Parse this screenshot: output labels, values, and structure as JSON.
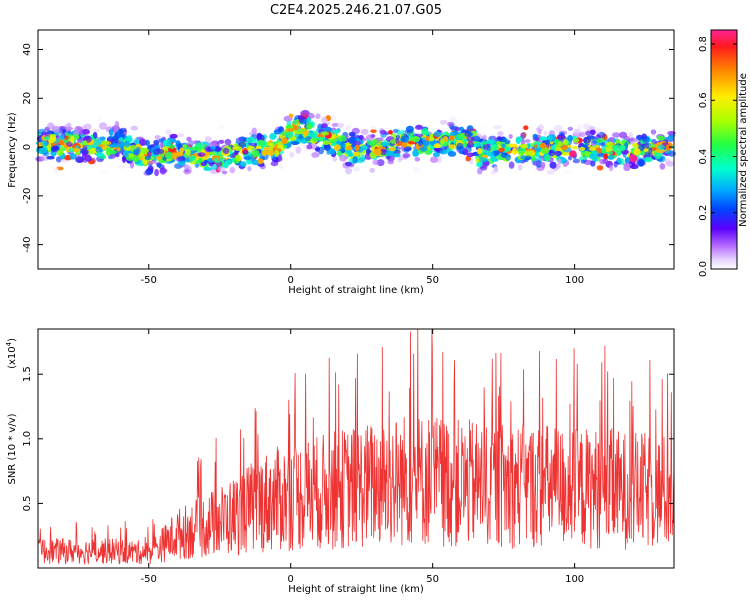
{
  "title": "C2E4.2025.246.21.07.G05",
  "chart_data": [
    {
      "type": "heatmap",
      "name": "spectrogram",
      "xlabel": "Height of straight line (km)",
      "ylabel": "Frequency (Hz)",
      "xlim": [
        -89,
        135
      ],
      "ylim": [
        -50,
        48
      ],
      "xticks": [
        -50,
        0,
        50,
        100
      ],
      "yticks": [
        -40,
        -20,
        0,
        20,
        40
      ],
      "ridge": {
        "x": [
          -89,
          -80,
          -70,
          -60,
          -50,
          -40,
          -30,
          -20,
          -10,
          -5,
          0,
          5,
          10,
          15,
          20,
          30,
          40,
          50,
          60,
          64,
          66,
          70,
          80,
          90,
          100,
          110,
          120,
          130,
          135
        ],
        "y": [
          2,
          1,
          0,
          1,
          -4,
          -2,
          -4,
          -3,
          -1,
          0,
          6,
          7,
          4,
          3,
          -1,
          -1,
          2,
          2,
          3,
          4,
          -3,
          -2,
          -1,
          -1,
          0,
          -1,
          -2,
          0,
          0
        ]
      },
      "colorbar": {
        "label": "Normalized spectral amplitude",
        "ticks": [
          0.0,
          0.2,
          0.4,
          0.6,
          0.8
        ],
        "range": [
          0,
          0.85
        ]
      }
    },
    {
      "type": "line",
      "name": "snr",
      "xlabel": "Height of straight line (km)",
      "ylabel": "SNR (10 * v/v)",
      "multiplier": "(x10",
      "multiplier_exp": "4",
      "xlim": [
        -89,
        135
      ],
      "ylim": [
        0,
        1.85
      ],
      "xticks": [
        -50,
        0,
        50,
        100
      ],
      "yticks": [
        0.5,
        1.0,
        1.5
      ],
      "ytick_labels": [
        "0.5",
        "1.0",
        "1.5"
      ],
      "color": "#ee3333",
      "envelope": {
        "x": [
          -89,
          -80,
          -60,
          -50,
          -45,
          -40,
          -30,
          -20,
          -10,
          0,
          10,
          20,
          30,
          40,
          50,
          60,
          70,
          80,
          90,
          100,
          110,
          120,
          135
        ],
        "y": [
          0.2,
          0.2,
          0.2,
          0.18,
          0.28,
          0.4,
          0.5,
          0.62,
          0.78,
          0.85,
          0.9,
          0.95,
          1.0,
          1.05,
          1.05,
          1.0,
          1.0,
          0.98,
          0.98,
          0.95,
          0.95,
          0.92,
          0.9
        ]
      }
    }
  ]
}
